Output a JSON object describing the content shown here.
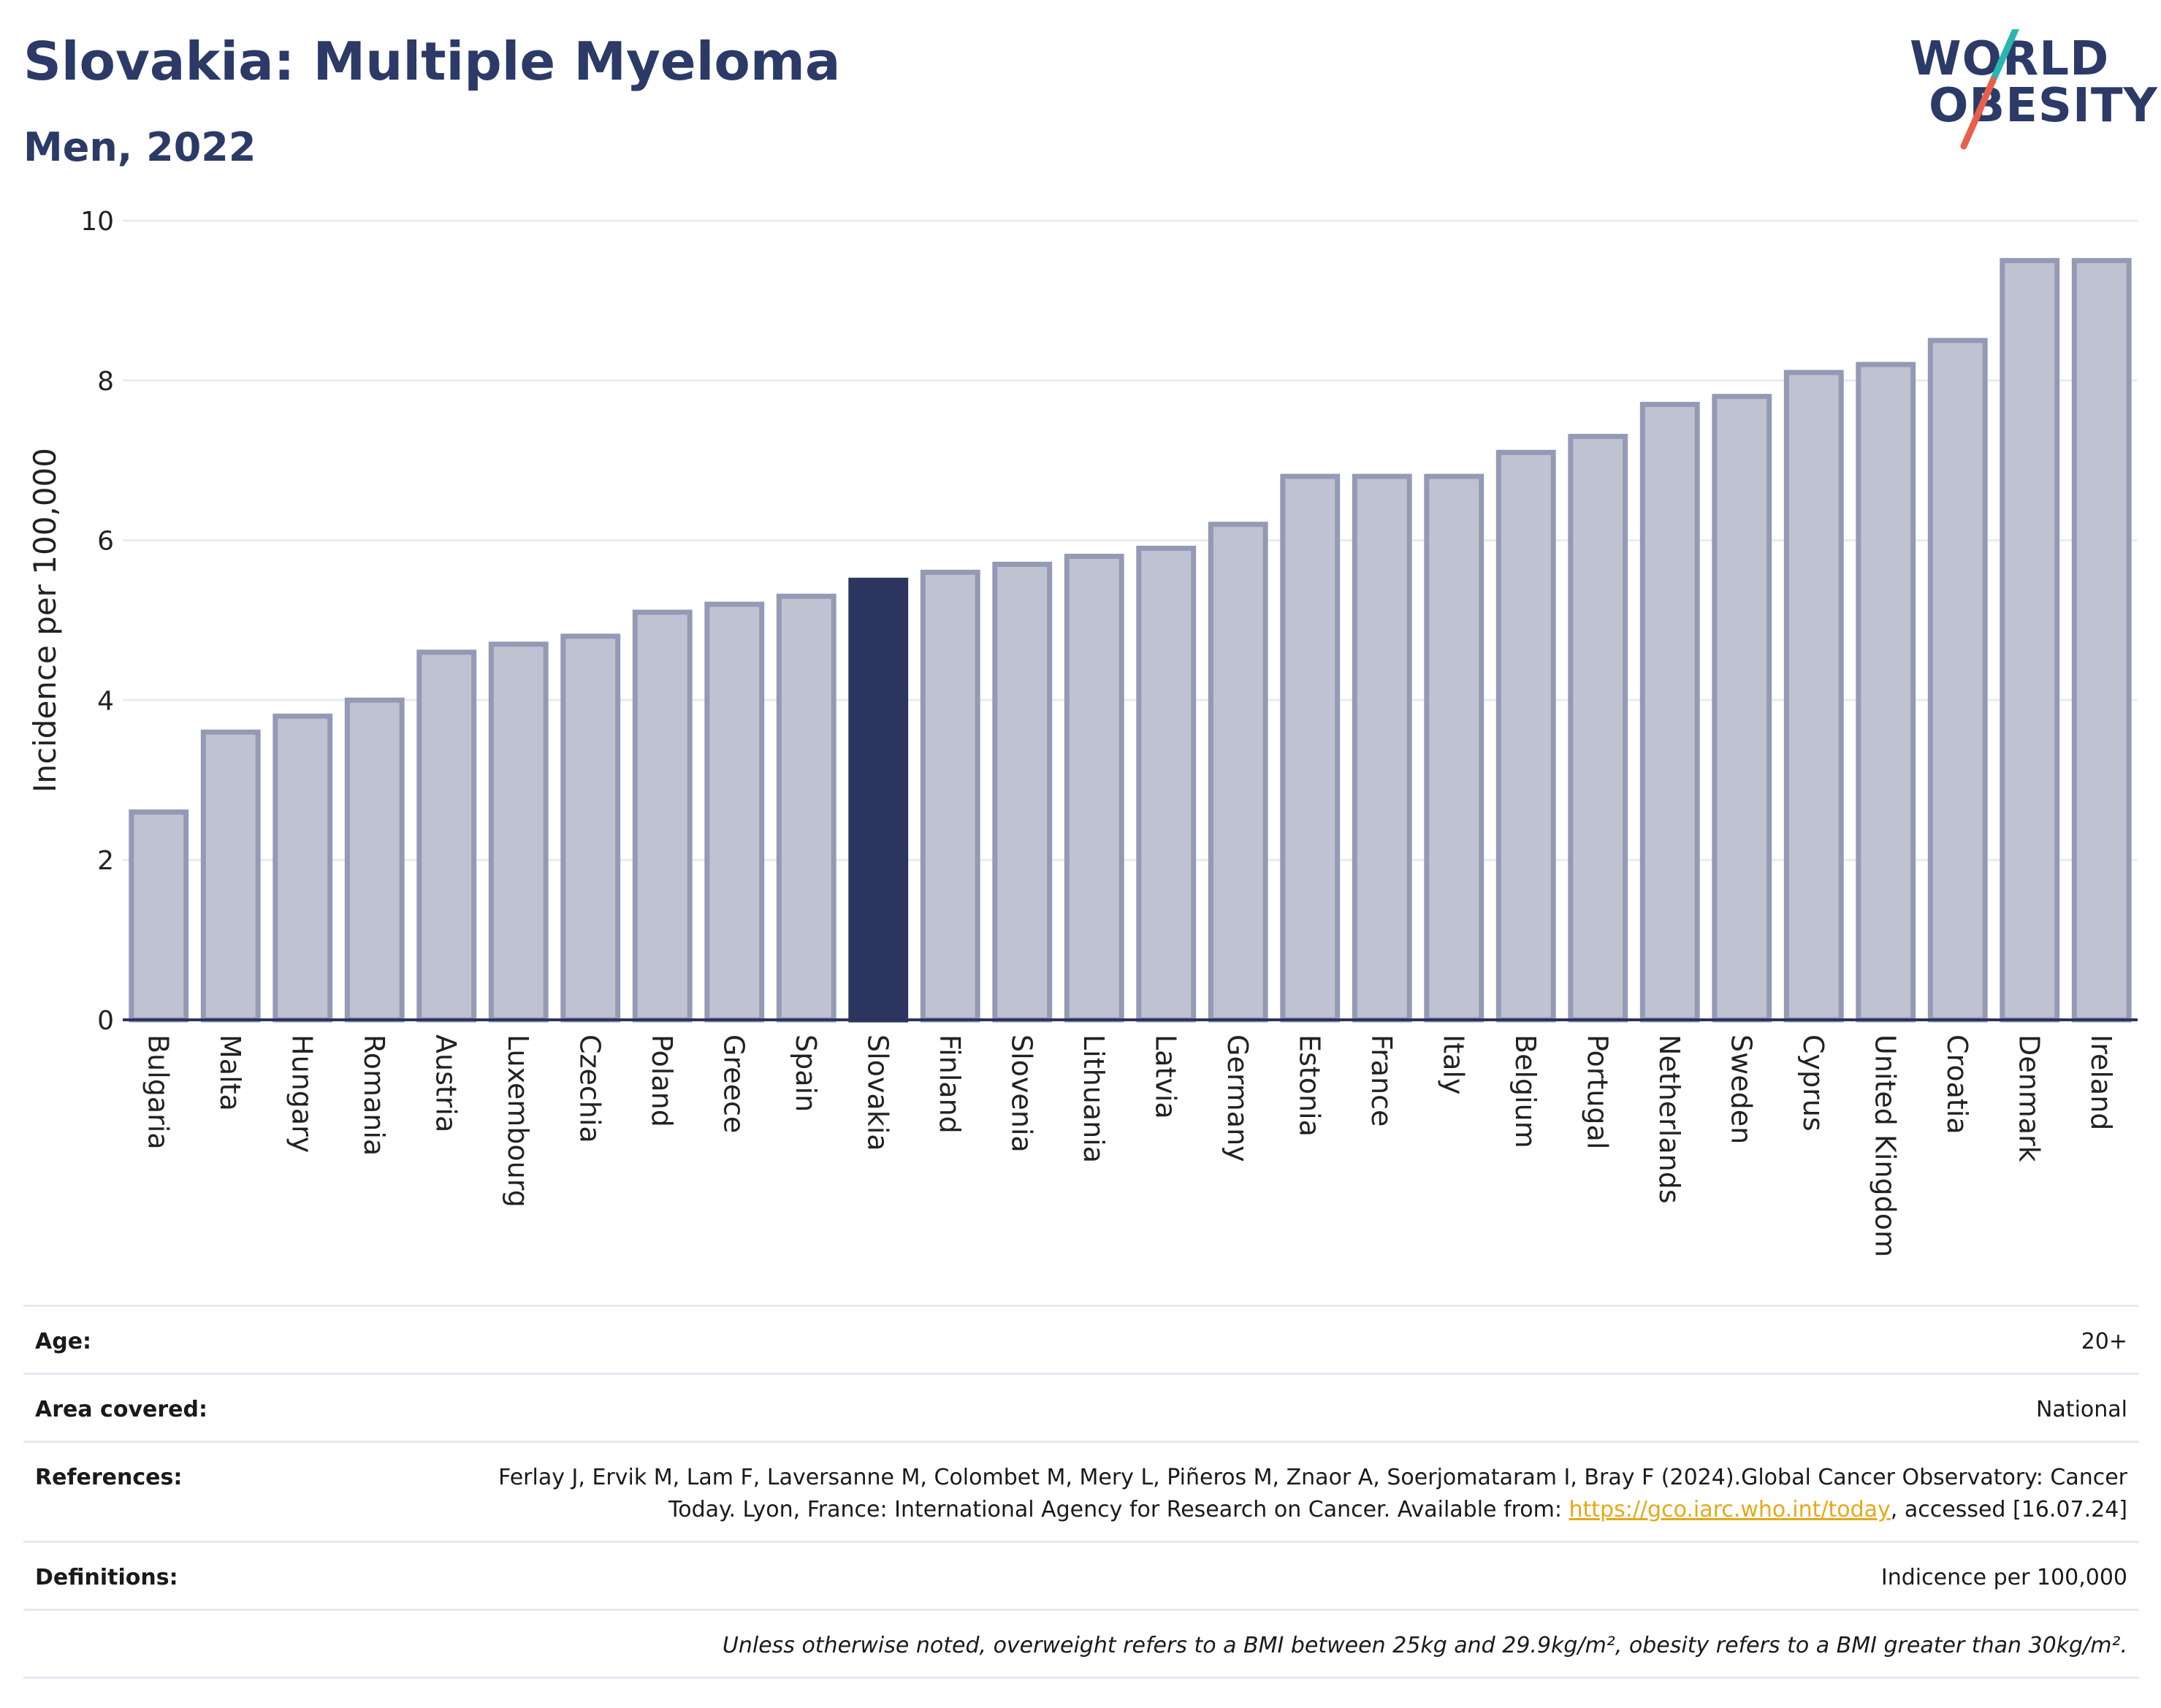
{
  "header": {
    "title": "Slovakia: Multiple Myeloma",
    "subtitle": "Men, 2022"
  },
  "logo": {
    "line1": "WORLD",
    "line2": "OBESITY",
    "colors": {
      "text": "#2b3a67",
      "slash_top": "#2bb5b0",
      "slash_bottom": "#e8604c"
    }
  },
  "chart_data": {
    "type": "bar",
    "ylabel": "Incidence per 100,000",
    "ylim": [
      0,
      10
    ],
    "yticks": [
      0,
      2,
      4,
      6,
      8,
      10
    ],
    "grid": true,
    "highlight": "Slovakia",
    "colors": {
      "bar": "#bfc3d1",
      "bar_edge": "#9499b5",
      "highlight": "#2b3560"
    },
    "categories": [
      "Bulgaria",
      "Malta",
      "Hungary",
      "Romania",
      "Austria",
      "Luxembourg",
      "Czechia",
      "Poland",
      "Greece",
      "Spain",
      "Slovakia",
      "Finland",
      "Slovenia",
      "Lithuania",
      "Latvia",
      "Germany",
      "Estonia",
      "France",
      "Italy",
      "Belgium",
      "Portugal",
      "Netherlands",
      "Sweden",
      "Cyprus",
      "United Kingdom",
      "Croatia",
      "Denmark",
      "Ireland"
    ],
    "values": [
      2.6,
      3.6,
      3.8,
      4.0,
      4.6,
      4.7,
      4.8,
      5.1,
      5.2,
      5.3,
      5.5,
      5.6,
      5.7,
      5.8,
      5.9,
      6.2,
      6.8,
      6.8,
      6.8,
      7.1,
      7.3,
      7.7,
      7.8,
      8.1,
      8.2,
      8.5,
      9.5,
      9.5
    ]
  },
  "info": {
    "age_label": "Age:",
    "age_value": "20+",
    "area_label": "Area covered:",
    "area_value": "National",
    "references_label": "References:",
    "references_text": "Ferlay J, Ervik M, Lam F, Laversanne M, Colombet M, Mery L, Piñeros M, Znaor A, Soerjomataram I, Bray F (2024).Global Cancer Observatory: Cancer Today. Lyon, France: International Agency for Research on Cancer. Available from: ",
    "references_link": "https://gco.iarc.who.int/today",
    "references_suffix": ", accessed [16.07.24]",
    "definitions_label": "Definitions:",
    "definitions_value": "Indicence per 100,000",
    "note": "Unless otherwise noted, overweight refers to a BMI between 25kg and 29.9kg/m², obesity refers to a BMI greater than 30kg/m²."
  }
}
